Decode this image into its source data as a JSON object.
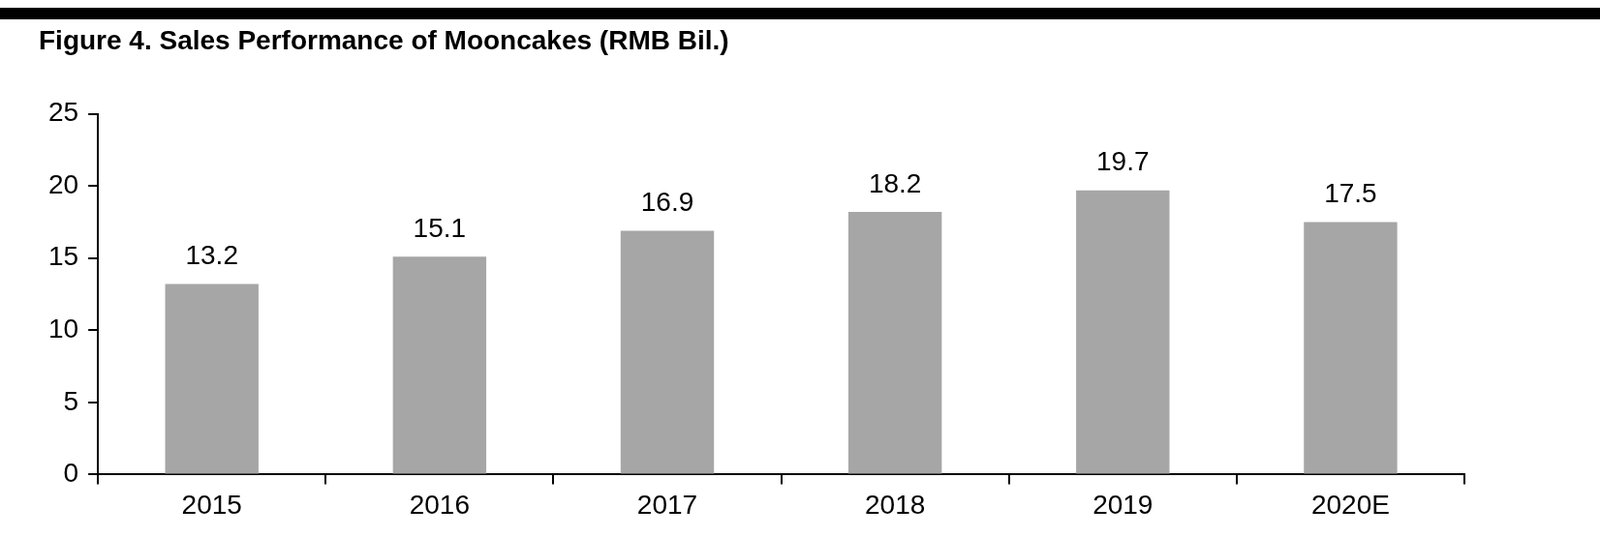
{
  "chart_data": {
    "type": "bar",
    "title": "Figure 4. Sales Performance of Mooncakes (RMB Bil.)",
    "categories": [
      "2015",
      "2016",
      "2017",
      "2018",
      "2019",
      "2020E"
    ],
    "values": [
      13.2,
      15.1,
      16.9,
      18.2,
      19.7,
      17.5
    ],
    "color": "#a6a6a6",
    "ylim": [
      0,
      25
    ],
    "yticks": [
      0,
      5,
      10,
      15,
      20,
      25
    ],
    "grid": false,
    "data_labels": true
  }
}
